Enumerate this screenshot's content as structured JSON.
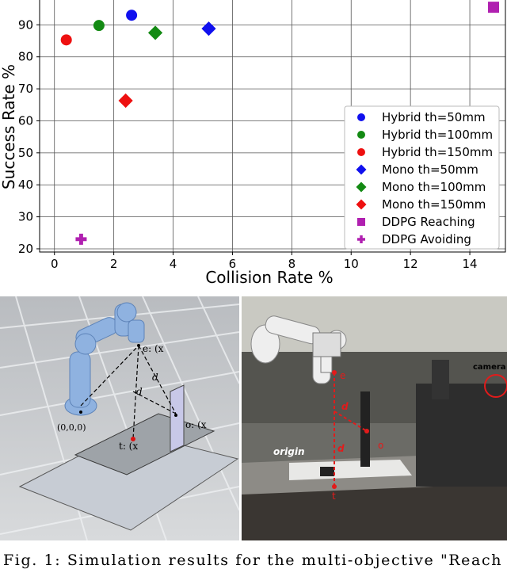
{
  "chart_data": {
    "type": "scatter",
    "xlabel": "Collision Rate %",
    "ylabel": "Success Rate %",
    "xlim": [
      -0.5,
      15.2
    ],
    "ylim": [
      19,
      99
    ],
    "xticks": [
      "0",
      "2",
      "4",
      "6",
      "8",
      "10",
      "12",
      "14"
    ],
    "yticks": [
      "20",
      "30",
      "40",
      "50",
      "60",
      "70",
      "80",
      "90"
    ],
    "grid": true,
    "legend_position": "bottom-right",
    "series": [
      {
        "name": "Hybrid th=50mm",
        "marker": "circle",
        "color": "#1010ee",
        "points": [
          [
            2.6,
            93.0
          ]
        ]
      },
      {
        "name": "Hybrid th=100mm",
        "marker": "circle",
        "color": "#138a13",
        "points": [
          [
            1.5,
            89.8
          ]
        ]
      },
      {
        "name": "Hybrid th=150mm",
        "marker": "circle",
        "color": "#ee1010",
        "points": [
          [
            0.4,
            85.3
          ]
        ]
      },
      {
        "name": "Mono th=50mm",
        "marker": "diamond",
        "color": "#1010ee",
        "points": [
          [
            5.2,
            88.8
          ]
        ]
      },
      {
        "name": "Mono th=100mm",
        "marker": "diamond",
        "color": "#138a13",
        "points": [
          [
            3.4,
            87.5
          ]
        ]
      },
      {
        "name": "Mono th=150mm",
        "marker": "diamond",
        "color": "#ee1010",
        "points": [
          [
            2.4,
            66.3
          ]
        ]
      },
      {
        "name": "DDPG Reaching",
        "marker": "square",
        "color": "#b020b0",
        "points": [
          [
            14.8,
            95.5
          ]
        ]
      },
      {
        "name": "DDPG Avoiding",
        "marker": "plus",
        "color": "#b020b0",
        "points": [
          [
            0.9,
            23.0
          ]
        ]
      }
    ]
  },
  "sim_figure": {
    "label_e": "e: (x",
    "label_e_sub": "e",
    "label_origin": "(0,0,0)",
    "label_t": "t: (x",
    "label_o": "o: (x",
    "label_do": "d",
    "label_do_sub": "o",
    "label_dt": "d",
    "label_dt_sub": "t"
  },
  "real_figure": {
    "label_camera": "camera",
    "label_origin": "origin",
    "label_e": "e",
    "label_t": "t",
    "label_o": "o",
    "label_do": "d",
    "label_dt": "d"
  },
  "caption": "Fig.  1:  Simulation  results  for  the  multi-objective  \"Reach"
}
